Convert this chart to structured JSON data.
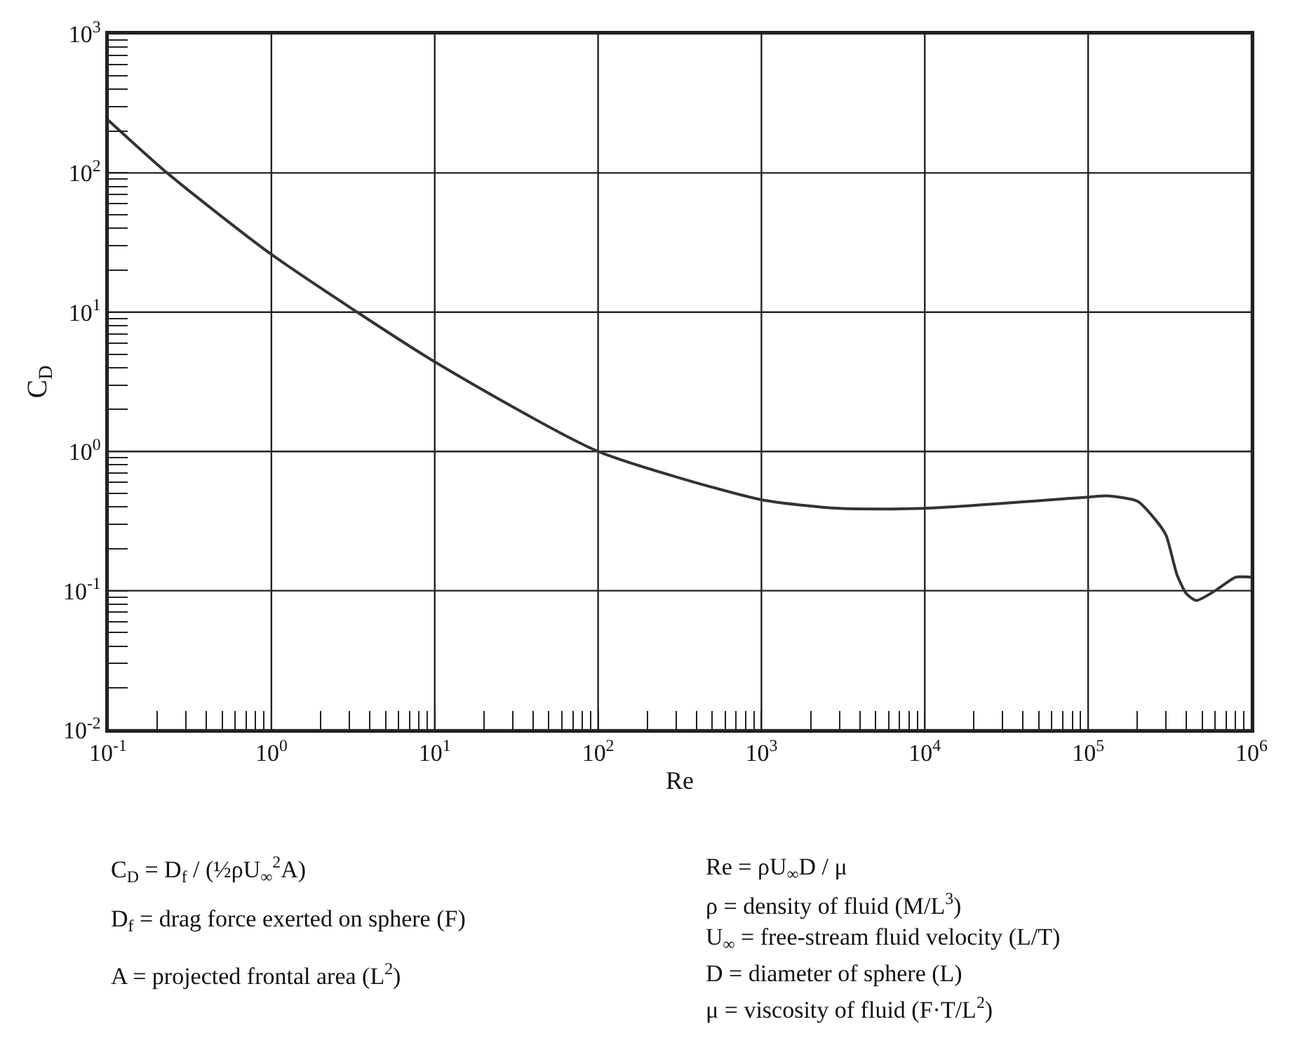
{
  "chart_data": {
    "type": "line",
    "xlabel": "Re",
    "ylabel": "C$_{D}$",
    "x": [
      0.1,
      0.23,
      1,
      10,
      100,
      1000,
      3000,
      10000,
      100000,
      130000,
      200000,
      260000,
      300000,
      350000,
      400000,
      460000,
      600000,
      800000,
      1000000
    ],
    "series": [
      {
        "color": "#333333",
        "values": [
          240,
          100,
          26,
          4.4,
          1.0,
          0.45,
          0.39,
          0.39,
          0.47,
          0.48,
          0.44,
          0.32,
          0.25,
          0.13,
          0.095,
          0.085,
          0.1,
          0.125,
          0.125
        ]
      }
    ],
    "log": "xy",
    "grid": true,
    "marker": "none",
    "line_style": "solid",
    "xlim": [
      0.1,
      1000000
    ],
    "ylim": [
      0.01,
      1000
    ],
    "xticks": [
      {
        "value": 0.1,
        "label": "10$^{-1}$"
      },
      {
        "value": 1,
        "label": "10$^{0}$"
      },
      {
        "value": 10,
        "label": "10$^{1}$"
      },
      {
        "value": 100,
        "label": "10$^{2}$"
      },
      {
        "value": 1000,
        "label": "10$^{3}$"
      },
      {
        "value": 10000,
        "label": "10$^{4}$"
      },
      {
        "value": 100000,
        "label": "10$^{5}$"
      },
      {
        "value": 1000000,
        "label": "10$^{6}$"
      },
      {
        "value": 0.2,
        "label": null
      },
      {
        "value": 0.3,
        "label": null
      },
      {
        "value": 0.4,
        "label": null
      },
      {
        "value": 0.5,
        "label": null
      },
      {
        "value": 0.6,
        "label": null
      },
      {
        "value": 0.7,
        "label": null
      },
      {
        "value": 0.8,
        "label": null
      },
      {
        "value": 0.9,
        "label": null
      },
      {
        "value": 2,
        "label": null
      },
      {
        "value": 3,
        "label": null
      },
      {
        "value": 4,
        "label": null
      },
      {
        "value": 5,
        "label": null
      },
      {
        "value": 6,
        "label": null
      },
      {
        "value": 7,
        "label": null
      },
      {
        "value": 8,
        "label": null
      },
      {
        "value": 9,
        "label": null
      },
      {
        "value": 20,
        "label": null
      },
      {
        "value": 30,
        "label": null
      },
      {
        "value": 40,
        "label": null
      },
      {
        "value": 50,
        "label": null
      },
      {
        "value": 60,
        "label": null
      },
      {
        "value": 70,
        "label": null
      },
      {
        "value": 80,
        "label": null
      },
      {
        "value": 90,
        "label": null
      },
      {
        "value": 200,
        "label": null
      },
      {
        "value": 300,
        "label": null
      },
      {
        "value": 400,
        "label": null
      },
      {
        "value": 500,
        "label": null
      },
      {
        "value": 600,
        "label": null
      },
      {
        "value": 700,
        "label": null
      },
      {
        "value": 800,
        "label": null
      },
      {
        "value": 900,
        "label": null
      },
      {
        "value": 2000,
        "label": null
      },
      {
        "value": 3000,
        "label": null
      },
      {
        "value": 4000,
        "label": null
      },
      {
        "value": 5000,
        "label": null
      },
      {
        "value": 6000,
        "label": null
      },
      {
        "value": 7000,
        "label": null
      },
      {
        "value": 8000,
        "label": null
      },
      {
        "value": 9000,
        "label": null
      },
      {
        "value": 20000,
        "label": null
      },
      {
        "value": 30000,
        "label": null
      },
      {
        "value": 40000,
        "label": null
      },
      {
        "value": 50000,
        "label": null
      },
      {
        "value": 60000,
        "label": null
      },
      {
        "value": 70000,
        "label": null
      },
      {
        "value": 80000,
        "label": null
      },
      {
        "value": 90000,
        "label": null
      },
      {
        "value": 200000,
        "label": null
      },
      {
        "value": 300000,
        "label": null
      },
      {
        "value": 400000,
        "label": null
      },
      {
        "value": 500000,
        "label": null
      },
      {
        "value": 600000,
        "label": null
      },
      {
        "value": 700000,
        "label": null
      },
      {
        "value": 800000,
        "label": null
      },
      {
        "value": 900000,
        "label": null
      }
    ],
    "yticks": [
      {
        "value": 0.01,
        "label": "10$^{-2}$"
      },
      {
        "value": 0.1,
        "label": "10$^{-1}$"
      },
      {
        "value": 1,
        "label": "10$^{0}$"
      },
      {
        "value": 10,
        "label": "10$^{1}$"
      },
      {
        "value": 100,
        "label": "10$^{2}$"
      },
      {
        "value": 1000,
        "label": "10$^{3}$"
      },
      {
        "value": 0.02,
        "label": null
      },
      {
        "value": 0.03,
        "label": null
      },
      {
        "value": 0.04,
        "label": null
      },
      {
        "value": 0.05,
        "label": null
      },
      {
        "value": 0.06,
        "label": null
      },
      {
        "value": 0.07,
        "label": null
      },
      {
        "value": 0.08,
        "label": null
      },
      {
        "value": 0.09,
        "label": null
      },
      {
        "value": 0.2,
        "label": null
      },
      {
        "value": 0.3,
        "label": null
      },
      {
        "value": 0.4,
        "label": null
      },
      {
        "value": 0.5,
        "label": null
      },
      {
        "value": 0.6,
        "label": null
      },
      {
        "value": 0.7,
        "label": null
      },
      {
        "value": 0.8,
        "label": null
      },
      {
        "value": 0.9,
        "label": null
      },
      {
        "value": 2,
        "label": null
      },
      {
        "value": 3,
        "label": null
      },
      {
        "value": 4,
        "label": null
      },
      {
        "value": 5,
        "label": null
      },
      {
        "value": 6,
        "label": null
      },
      {
        "value": 7,
        "label": null
      },
      {
        "value": 8,
        "label": null
      },
      {
        "value": 9,
        "label": null
      },
      {
        "value": 20,
        "label": null
      },
      {
        "value": 30,
        "label": null
      },
      {
        "value": 40,
        "label": null
      },
      {
        "value": 50,
        "label": null
      },
      {
        "value": 60,
        "label": null
      },
      {
        "value": 70,
        "label": null
      },
      {
        "value": 80,
        "label": null
      },
      {
        "value": 90,
        "label": null
      },
      {
        "value": 200,
        "label": null
      },
      {
        "value": 300,
        "label": null
      },
      {
        "value": 400,
        "label": null
      },
      {
        "value": 500,
        "label": null
      },
      {
        "value": 600,
        "label": null
      },
      {
        "value": 700,
        "label": null
      },
      {
        "value": 800,
        "label": null
      },
      {
        "value": 900,
        "label": null
      }
    ],
    "annotations": [
      "C$_{D}$ = D$_{f}$ / (½ρU$_{∞}$$^{2}$A)",
      "D$_{f}$ = drag force exerted on sphere (F)",
      "A = projected frontal area (L$^{2}$)",
      "Re = ρU$_{∞}$D / μ",
      "ρ = density of fluid (M/L$^{3}$)",
      "U$_{∞}$ = free-stream fluid velocity (L/T)",
      "D = diameter of sphere (L)",
      "μ = viscosity of fluid (F·T/L$^{2}$)"
    ]
  }
}
